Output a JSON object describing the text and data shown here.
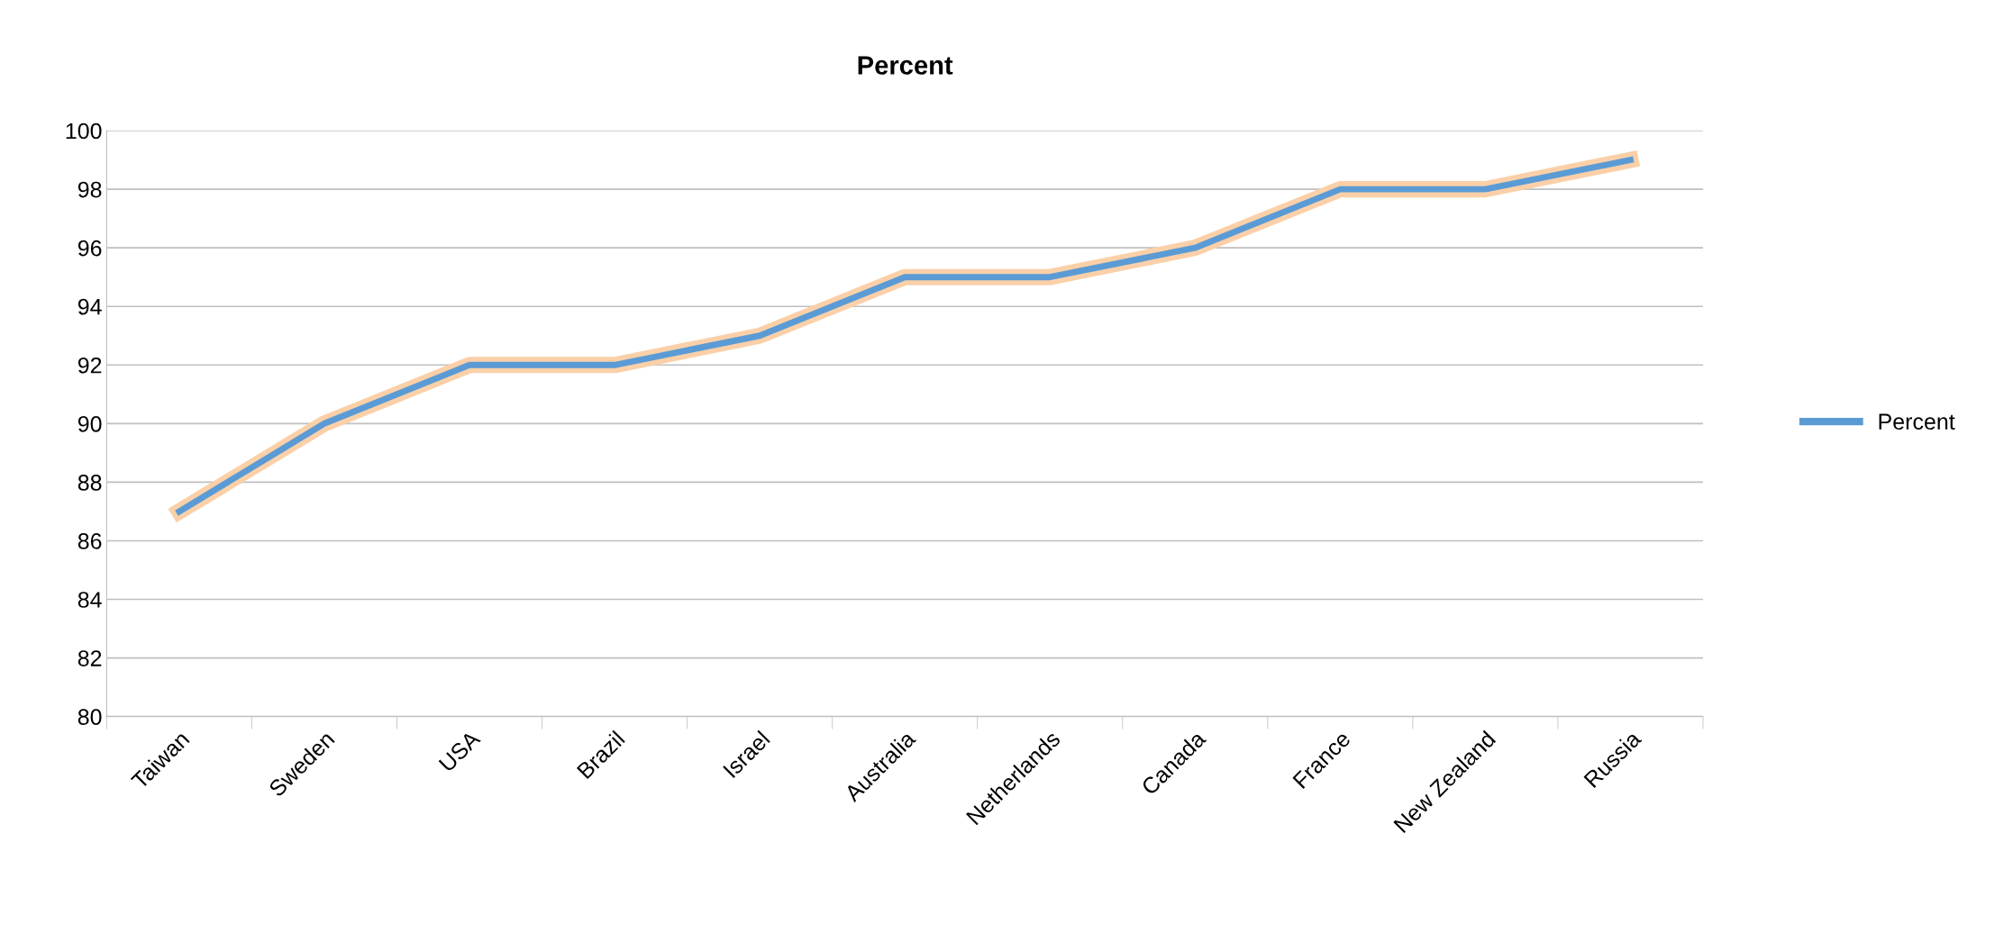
{
  "chart_data": {
    "type": "line",
    "title": "Percent",
    "categories": [
      "Taiwan",
      "Sweden",
      "USA",
      "Brazil",
      "Israel",
      "Australia",
      "Netherlands",
      "Canada",
      "France",
      "New Zealand",
      "Russia"
    ],
    "series": [
      {
        "name": "Percent",
        "color": "#5b9bd5",
        "values": [
          87,
          90,
          92,
          92,
          93,
          95,
          95,
          96,
          98,
          98,
          99
        ]
      }
    ],
    "ylim": [
      80,
      100
    ],
    "yticks": [
      80,
      82,
      84,
      86,
      88,
      90,
      92,
      94,
      96,
      98,
      100
    ],
    "grid": "y",
    "legend": "right",
    "marker": "none",
    "line_style": "solid"
  }
}
